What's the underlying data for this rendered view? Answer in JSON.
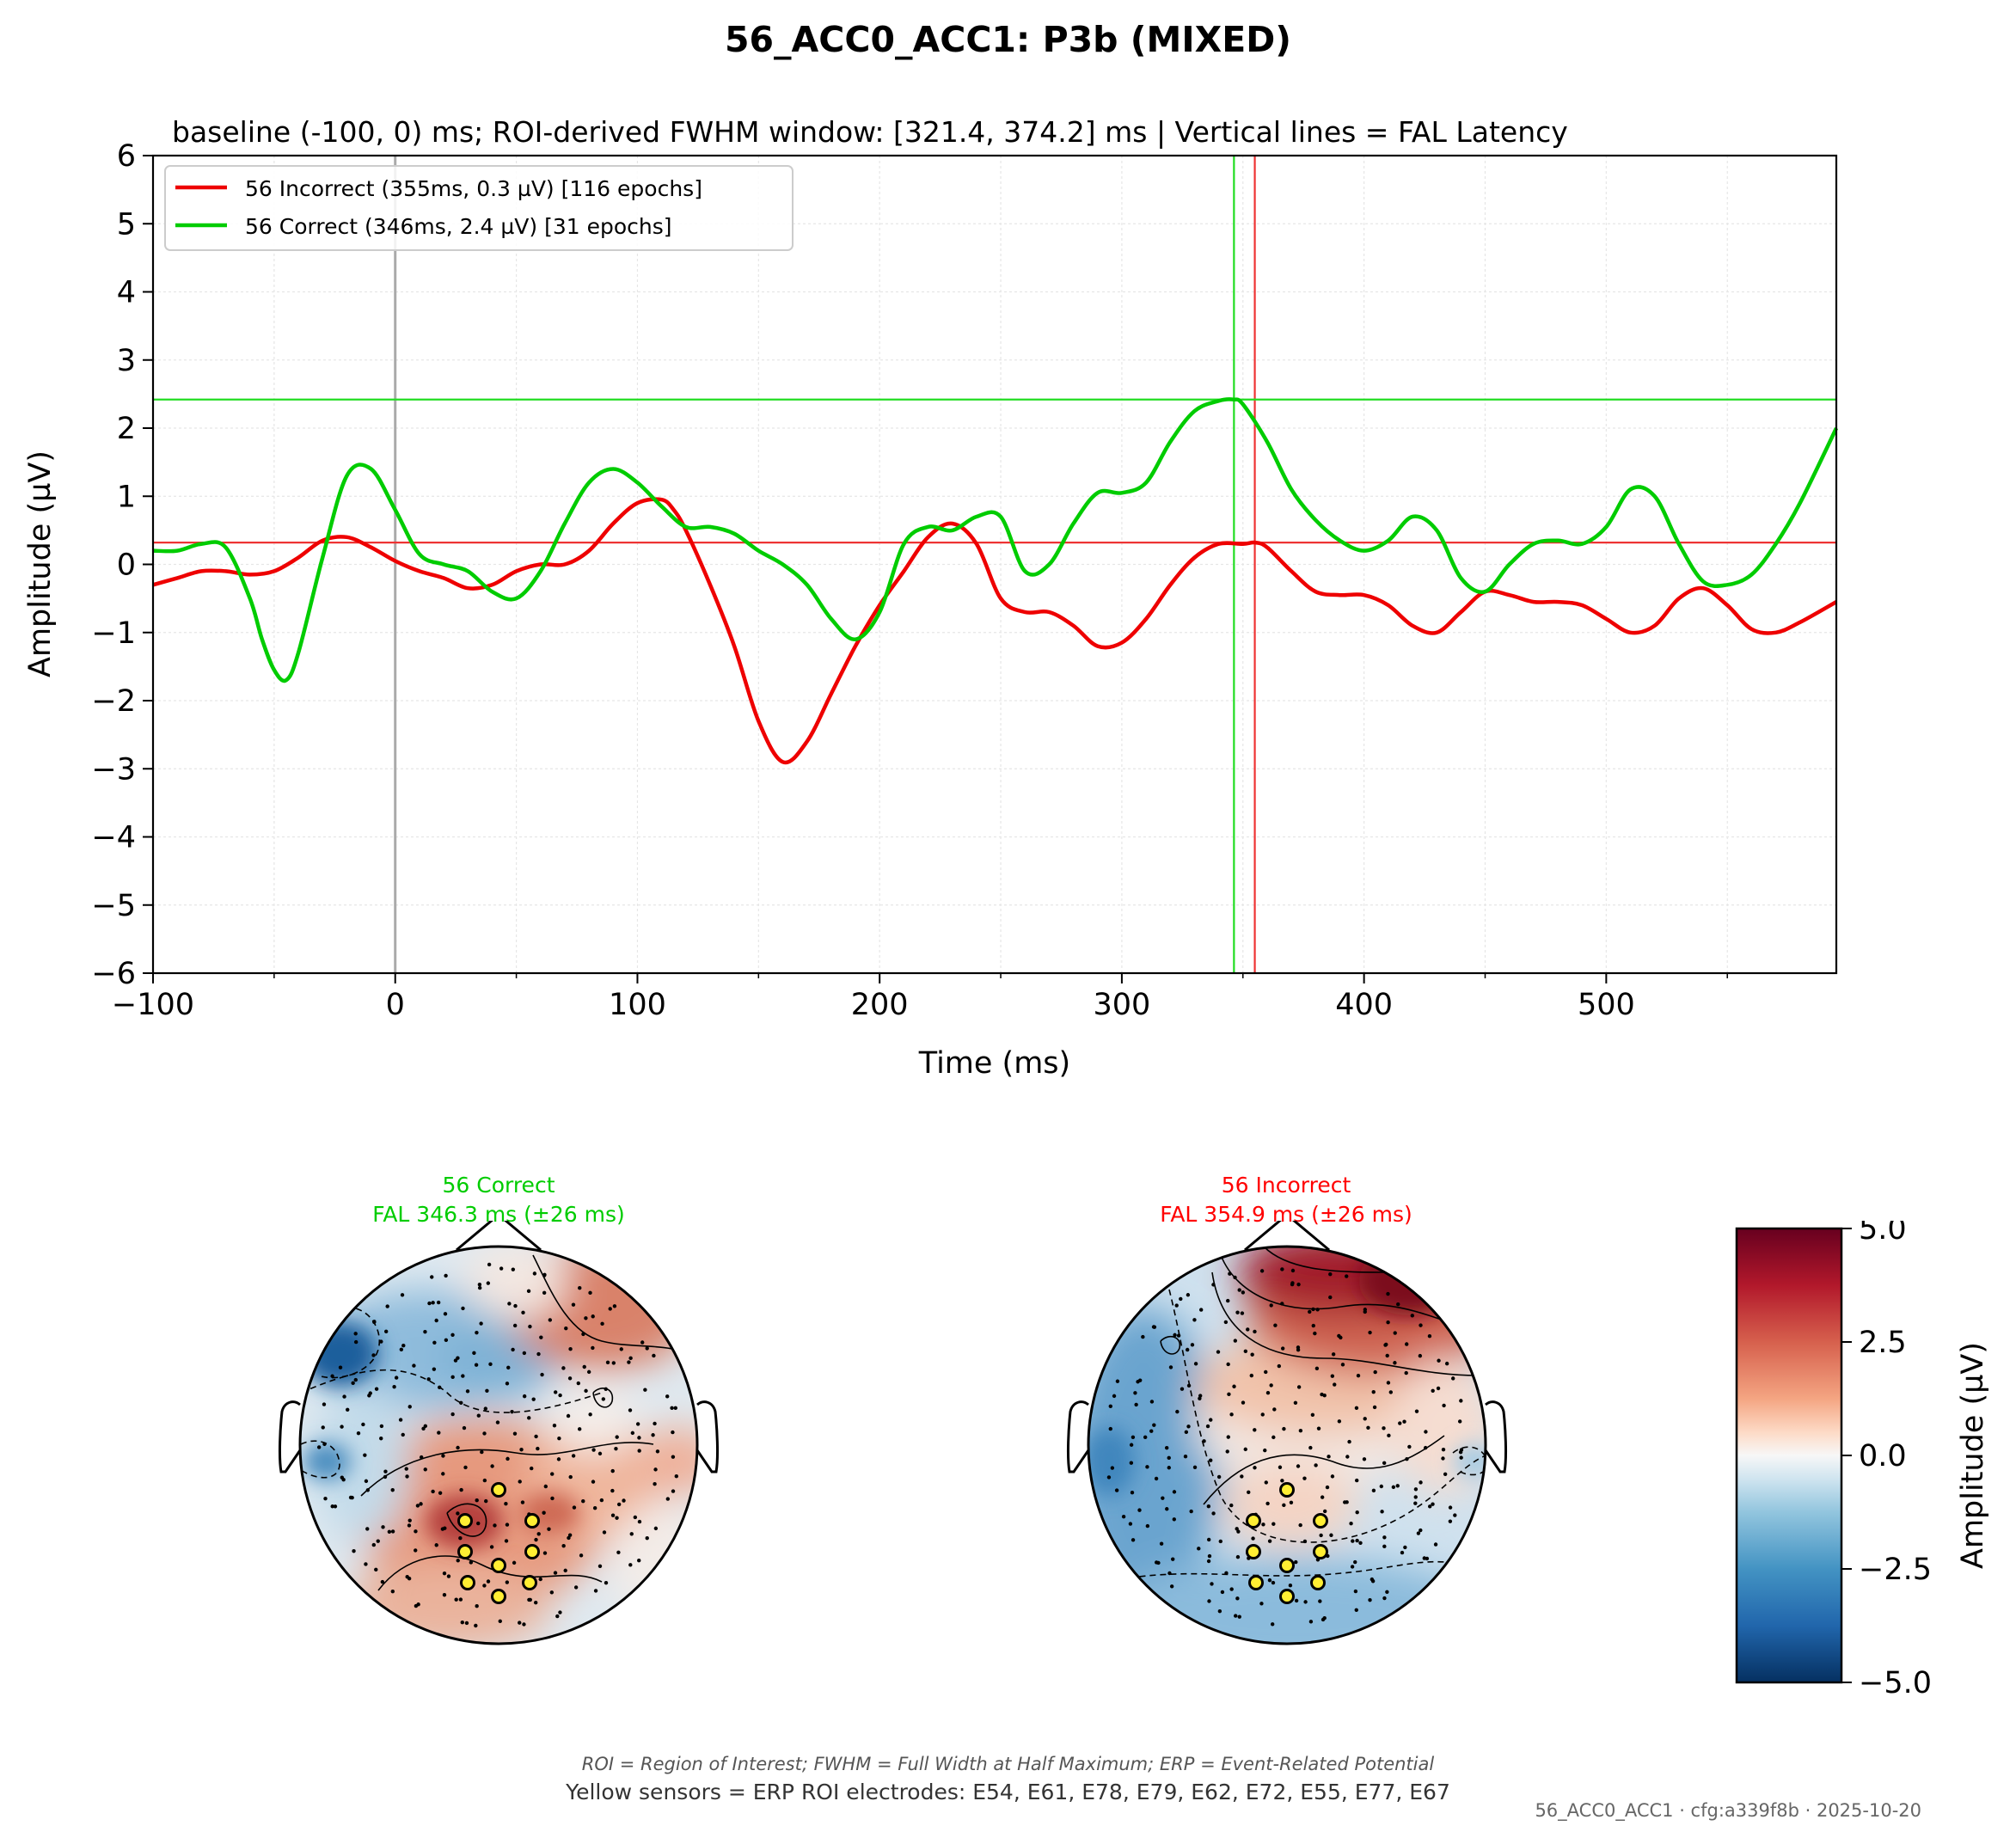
{
  "figure": {
    "title": "56_ACC0_ACC1: P3b (MIXED)",
    "subtitle": "baseline (-100, 0) ms; ROI-derived FWHM window: [321.4, 374.2] ms | Vertical lines = FAL Latency",
    "footnote": "ROI = Region of Interest; FWHM = Full Width at Half Maximum; ERP = Event-Related Potential",
    "roi_note": "Yellow sensors = ERP ROI electrodes: E54, E61, E78, E79, E62, E72, E55, E77, E67",
    "config_stamp": "56_ACC0_ACC1 · cfg:a339f8b · 2025-10-20"
  },
  "chart_data": [
    {
      "type": "line",
      "xlabel": "Time (ms)",
      "ylabel": "Amplitude (µV)",
      "xlim": [
        -100,
        595
      ],
      "ylim": [
        -6,
        6
      ],
      "xticks": [
        "−100",
        "0",
        "100",
        "200",
        "300",
        "400",
        "500"
      ],
      "xtick_values": [
        -100,
        0,
        100,
        200,
        300,
        400,
        500
      ],
      "yticks": [
        "6",
        "5",
        "4",
        "3",
        "2",
        "1",
        "0",
        "−1",
        "−2",
        "−3",
        "−4",
        "−5",
        "−6"
      ],
      "ytick_values": [
        6,
        5,
        4,
        3,
        2,
        1,
        0,
        -1,
        -2,
        -3,
        -4,
        -5,
        -6
      ],
      "grid": true,
      "legend_position": "top-left",
      "series": [
        {
          "name": "56 Incorrect (355ms, 0.3 µV) [116 epochs]",
          "color": "#ee0000",
          "peak_latency_ms": 354.9,
          "peak_amplitude_uv": 0.32,
          "x": [
            -100,
            -90,
            -80,
            -70,
            -60,
            -50,
            -40,
            -30,
            -20,
            -10,
            0,
            10,
            20,
            30,
            40,
            50,
            60,
            70,
            80,
            90,
            100,
            110,
            115,
            120,
            130,
            140,
            150,
            160,
            170,
            180,
            190,
            200,
            210,
            220,
            230,
            240,
            250,
            260,
            270,
            280,
            290,
            300,
            310,
            320,
            330,
            340,
            350,
            355,
            360,
            370,
            380,
            390,
            400,
            410,
            420,
            430,
            440,
            450,
            460,
            470,
            480,
            490,
            500,
            510,
            520,
            530,
            540,
            550,
            560,
            570,
            580,
            595
          ],
          "y": [
            -0.3,
            -0.2,
            -0.1,
            -0.1,
            -0.15,
            -0.1,
            0.1,
            0.35,
            0.4,
            0.25,
            0.05,
            -0.1,
            -0.2,
            -0.35,
            -0.3,
            -0.1,
            0.0,
            0.0,
            0.2,
            0.6,
            0.9,
            0.95,
            0.8,
            0.5,
            -0.3,
            -1.2,
            -2.3,
            -2.9,
            -2.6,
            -1.9,
            -1.2,
            -0.6,
            -0.1,
            0.4,
            0.6,
            0.3,
            -0.5,
            -0.7,
            -0.7,
            -0.9,
            -1.2,
            -1.15,
            -0.8,
            -0.3,
            0.1,
            0.3,
            0.3,
            0.32,
            0.25,
            -0.1,
            -0.4,
            -0.45,
            -0.45,
            -0.6,
            -0.9,
            -1.0,
            -0.7,
            -0.4,
            -0.45,
            -0.55,
            -0.55,
            -0.6,
            -0.8,
            -1.0,
            -0.9,
            -0.5,
            -0.35,
            -0.6,
            -0.95,
            -1.0,
            -0.85,
            -0.55
          ]
        },
        {
          "name": "56 Correct (346ms, 2.4 µV) [31 epochs]",
          "color": "#00cc00",
          "peak_latency_ms": 346.3,
          "peak_amplitude_uv": 2.42,
          "x": [
            -100,
            -90,
            -80,
            -70,
            -60,
            -55,
            -50,
            -45,
            -40,
            -30,
            -20,
            -10,
            0,
            10,
            20,
            30,
            40,
            50,
            60,
            70,
            80,
            90,
            100,
            110,
            120,
            130,
            140,
            150,
            160,
            170,
            180,
            190,
            200,
            210,
            220,
            230,
            240,
            250,
            260,
            270,
            280,
            290,
            300,
            310,
            320,
            330,
            340,
            346,
            350,
            360,
            370,
            380,
            390,
            400,
            410,
            420,
            430,
            440,
            450,
            460,
            470,
            480,
            490,
            500,
            510,
            520,
            530,
            540,
            550,
            560,
            570,
            580,
            595
          ],
          "y": [
            0.2,
            0.2,
            0.3,
            0.25,
            -0.5,
            -1.1,
            -1.55,
            -1.7,
            -1.3,
            0.1,
            1.3,
            1.4,
            0.8,
            0.15,
            0.0,
            -0.1,
            -0.4,
            -0.5,
            -0.1,
            0.6,
            1.2,
            1.4,
            1.2,
            0.85,
            0.55,
            0.55,
            0.45,
            0.2,
            0.0,
            -0.3,
            -0.8,
            -1.1,
            -0.7,
            0.3,
            0.55,
            0.5,
            0.7,
            0.7,
            -0.1,
            0.0,
            0.6,
            1.05,
            1.05,
            1.2,
            1.8,
            2.25,
            2.4,
            2.42,
            2.35,
            1.8,
            1.1,
            0.65,
            0.35,
            0.2,
            0.35,
            0.7,
            0.5,
            -0.2,
            -0.4,
            0.0,
            0.3,
            0.35,
            0.3,
            0.55,
            1.1,
            1.0,
            0.3,
            -0.25,
            -0.3,
            -0.15,
            0.3,
            0.9,
            2.0
          ]
        }
      ],
      "reference_lines": [
        {
          "orientation": "vertical",
          "value": 0,
          "color": "#aaaaaa"
        },
        {
          "orientation": "vertical",
          "value": 346.3,
          "color": "#22dd22"
        },
        {
          "orientation": "vertical",
          "value": 354.9,
          "color": "#ee3333"
        },
        {
          "orientation": "horizontal",
          "value": 2.42,
          "color": "#22dd22"
        },
        {
          "orientation": "horizontal",
          "value": 0.32,
          "color": "#ee3333"
        }
      ]
    },
    {
      "type": "heatmap",
      "title": "56 Correct\nFAL 346.3 ms (±26 ms)",
      "title_lines": [
        "56 Correct",
        "FAL 346.3 ms (±26 ms)"
      ],
      "title_color": "#00cc00",
      "pattern": "negative left-frontal and left-temporal, positive centro-parietal and right-frontal",
      "roi_sensors": 9
    },
    {
      "type": "heatmap",
      "title": "56 Incorrect\nFAL 354.9 ms (±26 ms)",
      "title_lines": [
        "56 Incorrect",
        "FAL 354.9 ms (±26 ms)"
      ],
      "title_color": "#ff0000",
      "pattern": "strong positive frontal, negative left-temporal and occipital",
      "roi_sensors": 9
    }
  ],
  "colorbar": {
    "label": "Amplitude (µV)",
    "range": [
      -5.0,
      5.0
    ],
    "ticks": [
      "5.0",
      "2.5",
      "0.0",
      "−2.5",
      "−5.0"
    ],
    "tick_values": [
      5.0,
      2.5,
      0.0,
      -2.5,
      -5.0
    ],
    "colors": {
      "high": "#67001f",
      "mid": "#f7f7f7",
      "low": "#053061"
    }
  },
  "topo_colors": {
    "deep_red": "#8b0a1e",
    "red": "#c9503f",
    "light_red": "#f0a889",
    "pale": "#f5ece6",
    "light_blue": "#a9cfe5",
    "blue": "#4f93c2",
    "deep_blue": "#1b5a98",
    "sensor_yellow": "#ffee33"
  }
}
